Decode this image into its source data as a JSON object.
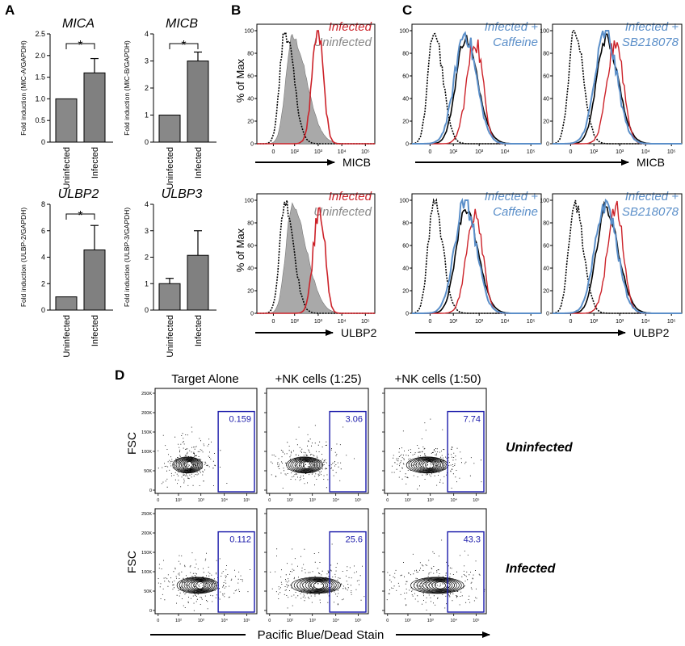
{
  "panel_labels": {
    "a": "A",
    "b": "B",
    "c": "C",
    "d": "D"
  },
  "colors": {
    "infected": "#cc2229",
    "uninfected": "#888888",
    "drug": "#5b8fc9",
    "black": "#000000",
    "fill": "#a9a9a9",
    "gate": "#1a1aaa",
    "bar": "#808080"
  },
  "panel_a": {
    "ylabels": {
      "mica": "Fold induction (MIC-A/GAPDH)",
      "micb": "Fold induction (MIC-B/GAPDH)",
      "ulbp2": "Fold induction (ULBP-2/GAPDH)",
      "ulbp3": "Fold induction (ULBP-3/GAPDH)"
    },
    "categories": [
      "Uninfected",
      "Infected"
    ],
    "significance": "*"
  },
  "panel_b": {
    "ylabel": "% of Max",
    "legend_infected": "Infected",
    "legend_uninfected": "Uninfected",
    "xlabel_top": "MICB",
    "xlabel_bottom": "ULBP2"
  },
  "panel_c": {
    "caffeine_line1": "Infected +",
    "caffeine_line2": "Caffeine",
    "sb_line1": "Infected +",
    "sb_line2": "SB218078",
    "xlabel_top": "MICB",
    "xlabel_bottom": "ULBP2"
  },
  "panel_d": {
    "col_titles": [
      "Target Alone",
      "+NK cells (1:25)",
      "+NK cells (1:50)"
    ],
    "row_labels": [
      "Uninfected",
      "Infected"
    ],
    "ylabel": "FSC",
    "xlabel": "Pacific Blue/Dead Stain",
    "gate_values": [
      [
        "0.159",
        "3.06",
        "7.74"
      ],
      [
        "0.112",
        "25.6",
        "43.3"
      ]
    ],
    "y_ticks": [
      "0",
      "50K",
      "100K",
      "150K",
      "200K",
      "250K"
    ]
  },
  "chart_data": [
    {
      "type": "bar",
      "title": "MICA",
      "ylabel": "Fold induction (MIC-A/GAPDH)",
      "categories": [
        "Uninfected",
        "Infected"
      ],
      "values": [
        1.0,
        1.6
      ],
      "error": [
        0,
        0.33
      ],
      "ylim": [
        0,
        2.5
      ],
      "yticks": [
        "0",
        "0.5",
        "1.0",
        "1.5",
        "2.0",
        "2.5"
      ],
      "significance": "*"
    },
    {
      "type": "bar",
      "title": "MICB",
      "ylabel": "Fold induction (MIC-B/GAPDH)",
      "categories": [
        "Uninfected",
        "Infected"
      ],
      "values": [
        1.0,
        3.0
      ],
      "error": [
        0,
        0.33
      ],
      "ylim": [
        0,
        4
      ],
      "yticks": [
        "0",
        "1",
        "2",
        "3",
        "4"
      ],
      "significance": "*"
    },
    {
      "type": "bar",
      "title": "ULBP2",
      "ylabel": "Fold induction (ULBP-2/GAPDH)",
      "categories": [
        "Uninfected",
        "Infected"
      ],
      "values": [
        1.0,
        4.55
      ],
      "error": [
        0,
        1.85
      ],
      "ylim": [
        0,
        8
      ],
      "yticks": [
        "0",
        "2",
        "4",
        "6",
        "8"
      ],
      "significance": "*"
    },
    {
      "type": "bar",
      "title": "ULBP3",
      "ylabel": "Fold induction (ULBP-3/GAPDH)",
      "categories": [
        "Uninfected",
        "Infected"
      ],
      "values": [
        1.0,
        2.07
      ],
      "error": [
        0.2,
        0.93
      ],
      "ylim": [
        0,
        4
      ],
      "yticks": [
        "0",
        "1",
        "2",
        "3",
        "4"
      ],
      "significance": ""
    },
    {
      "type": "line",
      "panel": "B-MICB",
      "xscale": "log",
      "xlim": [
        0,
        100000
      ],
      "ylim": [
        0,
        100
      ],
      "xticks": [
        "0",
        "10²",
        "10³",
        "10⁴",
        "10⁵"
      ],
      "yticks": [
        "0",
        "20",
        "40",
        "60",
        "80",
        "100"
      ],
      "ylabel": "% of Max",
      "xlabel": "MICB",
      "series": [
        {
          "name": "Infected",
          "peak": 1500
        },
        {
          "name": "Uninfected",
          "peak": 300
        }
      ]
    },
    {
      "type": "line",
      "panel": "B-ULBP2",
      "xscale": "log",
      "xlim": [
        0,
        100000
      ],
      "ylim": [
        0,
        100
      ],
      "xticks": [
        "0",
        "10²",
        "10³",
        "10⁴",
        "10⁵"
      ],
      "yticks": [
        "0",
        "20",
        "40",
        "60",
        "80",
        "100"
      ],
      "ylabel": "% of Max",
      "xlabel": "ULBP2",
      "series": [
        {
          "name": "Infected",
          "peak": 1800
        },
        {
          "name": "Uninfected",
          "peak": 200
        }
      ]
    },
    {
      "type": "line",
      "panel": "C",
      "xscale": "log",
      "xticks": [
        "0",
        "10²",
        "10³",
        "10⁴",
        "10⁵"
      ],
      "yticks": [
        "0",
        "20",
        "40",
        "60",
        "80",
        "100"
      ],
      "xlabels": [
        "MICB",
        "ULBP2"
      ]
    },
    {
      "type": "scatter",
      "panel": "D",
      "ylabel": "FSC",
      "xlabel": "Pacific Blue/Dead Stain",
      "yticks": [
        "0",
        "50K",
        "100K",
        "150K",
        "200K",
        "250K"
      ],
      "xticks": [
        "0",
        "10²",
        "10³",
        "10⁴",
        "10⁵"
      ],
      "gate_percent": [
        [
          0.159,
          3.06,
          7.74
        ],
        [
          0.112,
          25.6,
          43.3
        ]
      ]
    }
  ]
}
